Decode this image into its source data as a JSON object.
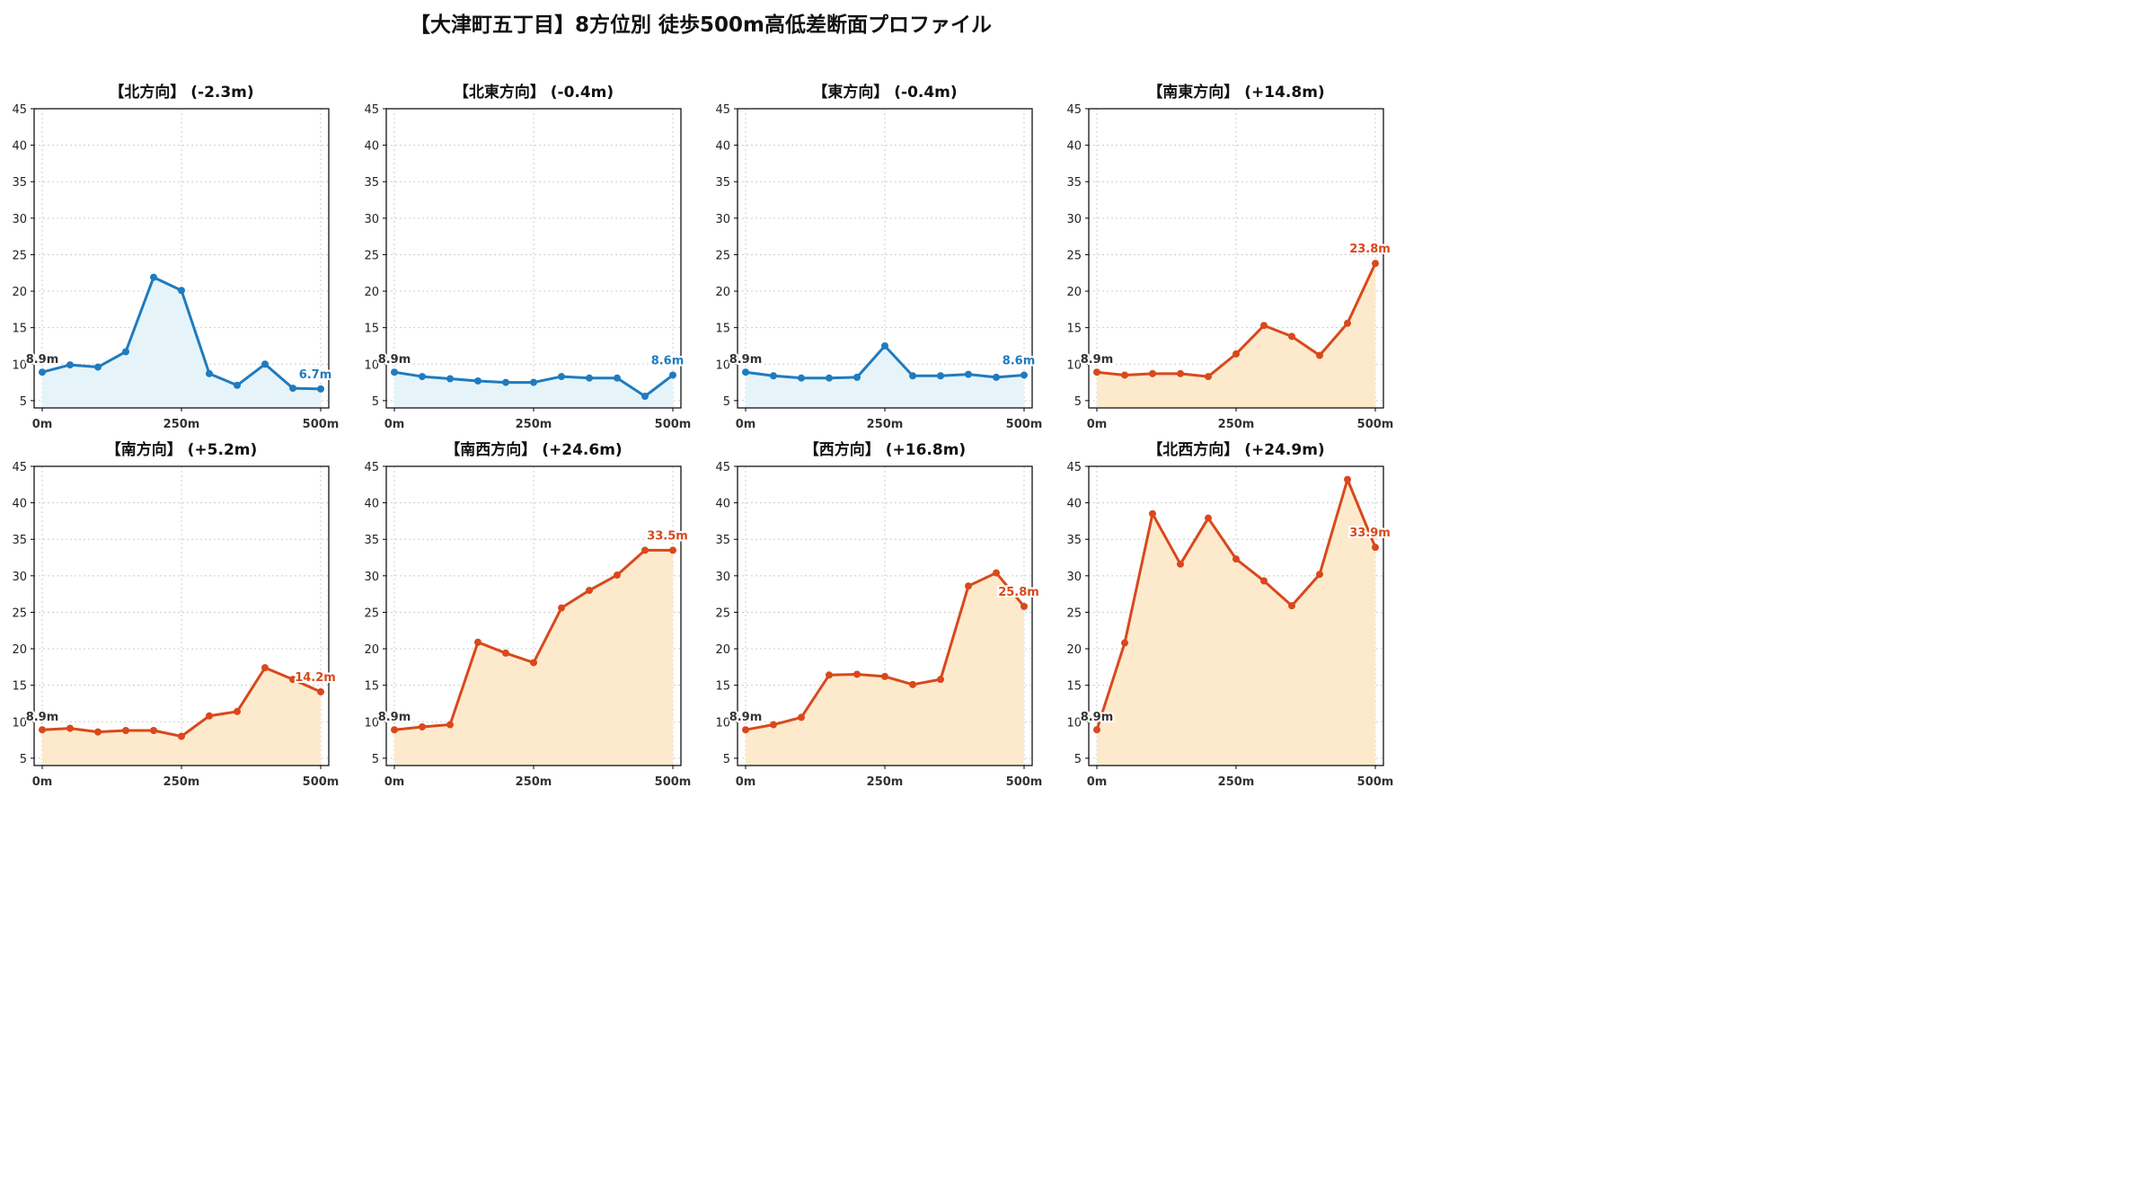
{
  "title": "【大津町五丁目】8方位別 徒歩500m高低差断面プロファイル",
  "colors": {
    "down_line": "#1f7bbf",
    "down_fill": "#e6f4fa",
    "up_line": "#d9481c",
    "up_fill": "#fdeacd",
    "start_label": "#333333"
  },
  "chart_data": [
    {
      "type": "area",
      "title": "【北方向】 (-2.3m)",
      "trend": "down",
      "x": [
        0,
        50,
        100,
        150,
        200,
        250,
        300,
        350,
        400,
        450,
        500
      ],
      "y": [
        8.9,
        9.9,
        9.6,
        11.7,
        21.9,
        20.1,
        8.7,
        7.1,
        10.0,
        6.7,
        6.6
      ],
      "start_label": "8.9m",
      "end_label": "6.7m",
      "xticks": [
        "0m",
        "250m",
        "500m"
      ],
      "ylim": [
        4,
        45
      ],
      "yticks": [
        5,
        10,
        15,
        20,
        25,
        30,
        35,
        40,
        45
      ],
      "grid": true
    },
    {
      "type": "area",
      "title": "【北東方向】 (-0.4m)",
      "trend": "down",
      "x": [
        0,
        50,
        100,
        150,
        200,
        250,
        300,
        350,
        400,
        450,
        500
      ],
      "y": [
        8.9,
        8.3,
        8.0,
        7.7,
        7.5,
        7.5,
        8.3,
        8.1,
        8.1,
        5.6,
        8.5
      ],
      "start_label": "8.9m",
      "end_label": "8.6m",
      "xticks": [
        "0m",
        "250m",
        "500m"
      ],
      "ylim": [
        4,
        45
      ],
      "yticks": [
        5,
        10,
        15,
        20,
        25,
        30,
        35,
        40,
        45
      ],
      "grid": true
    },
    {
      "type": "area",
      "title": "【東方向】 (-0.4m)",
      "trend": "down",
      "x": [
        0,
        50,
        100,
        150,
        200,
        250,
        300,
        350,
        400,
        450,
        500
      ],
      "y": [
        8.9,
        8.4,
        8.1,
        8.1,
        8.2,
        12.5,
        8.4,
        8.4,
        8.6,
        8.2,
        8.5
      ],
      "start_label": "8.9m",
      "end_label": "8.6m",
      "xticks": [
        "0m",
        "250m",
        "500m"
      ],
      "ylim": [
        4,
        45
      ],
      "yticks": [
        5,
        10,
        15,
        20,
        25,
        30,
        35,
        40,
        45
      ],
      "grid": true
    },
    {
      "type": "area",
      "title": "【南東方向】 (+14.8m)",
      "trend": "up",
      "x": [
        0,
        50,
        100,
        150,
        200,
        250,
        300,
        350,
        400,
        450,
        500
      ],
      "y": [
        8.9,
        8.5,
        8.7,
        8.7,
        8.3,
        11.4,
        15.3,
        13.8,
        11.2,
        15.6,
        23.8
      ],
      "start_label": "8.9m",
      "end_label": "23.8m",
      "xticks": [
        "0m",
        "250m",
        "500m"
      ],
      "ylim": [
        4,
        45
      ],
      "yticks": [
        5,
        10,
        15,
        20,
        25,
        30,
        35,
        40,
        45
      ],
      "grid": true
    },
    {
      "type": "area",
      "title": "【南方向】 (+5.2m)",
      "trend": "up",
      "x": [
        0,
        50,
        100,
        150,
        200,
        250,
        300,
        350,
        400,
        450,
        500
      ],
      "y": [
        8.9,
        9.1,
        8.6,
        8.8,
        8.8,
        8.0,
        10.8,
        11.4,
        17.4,
        15.8,
        14.1
      ],
      "start_label": "8.9m",
      "end_label": "14.2m",
      "xticks": [
        "0m",
        "250m",
        "500m"
      ],
      "ylim": [
        4,
        45
      ],
      "yticks": [
        5,
        10,
        15,
        20,
        25,
        30,
        35,
        40,
        45
      ],
      "grid": true
    },
    {
      "type": "area",
      "title": "【南西方向】 (+24.6m)",
      "trend": "up",
      "x": [
        0,
        50,
        100,
        150,
        200,
        250,
        300,
        350,
        400,
        450,
        500
      ],
      "y": [
        8.9,
        9.3,
        9.6,
        20.9,
        19.4,
        18.1,
        25.6,
        28.0,
        30.1,
        33.5,
        33.5
      ],
      "start_label": "8.9m",
      "end_label": "33.5m",
      "xticks": [
        "0m",
        "250m",
        "500m"
      ],
      "ylim": [
        4,
        45
      ],
      "yticks": [
        5,
        10,
        15,
        20,
        25,
        30,
        35,
        40,
        45
      ],
      "grid": true
    },
    {
      "type": "area",
      "title": "【西方向】 (+16.8m)",
      "trend": "up",
      "x": [
        0,
        50,
        100,
        150,
        200,
        250,
        300,
        350,
        400,
        450,
        500
      ],
      "y": [
        8.9,
        9.6,
        10.6,
        16.4,
        16.5,
        16.2,
        15.1,
        15.8,
        28.6,
        30.4,
        25.8
      ],
      "start_label": "8.9m",
      "end_label": "25.8m",
      "xticks": [
        "0m",
        "250m",
        "500m"
      ],
      "ylim": [
        4,
        45
      ],
      "yticks": [
        5,
        10,
        15,
        20,
        25,
        30,
        35,
        40,
        45
      ],
      "grid": true
    },
    {
      "type": "area",
      "title": "【北西方向】 (+24.9m)",
      "trend": "up",
      "x": [
        0,
        50,
        100,
        150,
        200,
        250,
        300,
        350,
        400,
        450,
        500
      ],
      "y": [
        8.9,
        20.8,
        38.5,
        31.6,
        37.9,
        32.3,
        29.3,
        25.9,
        30.2,
        43.2,
        33.9
      ],
      "start_label": "8.9m",
      "end_label": "33.9m",
      "xticks": [
        "0m",
        "250m",
        "500m"
      ],
      "ylim": [
        4,
        45
      ],
      "yticks": [
        5,
        10,
        15,
        20,
        25,
        30,
        35,
        40,
        45
      ],
      "grid": true
    }
  ]
}
